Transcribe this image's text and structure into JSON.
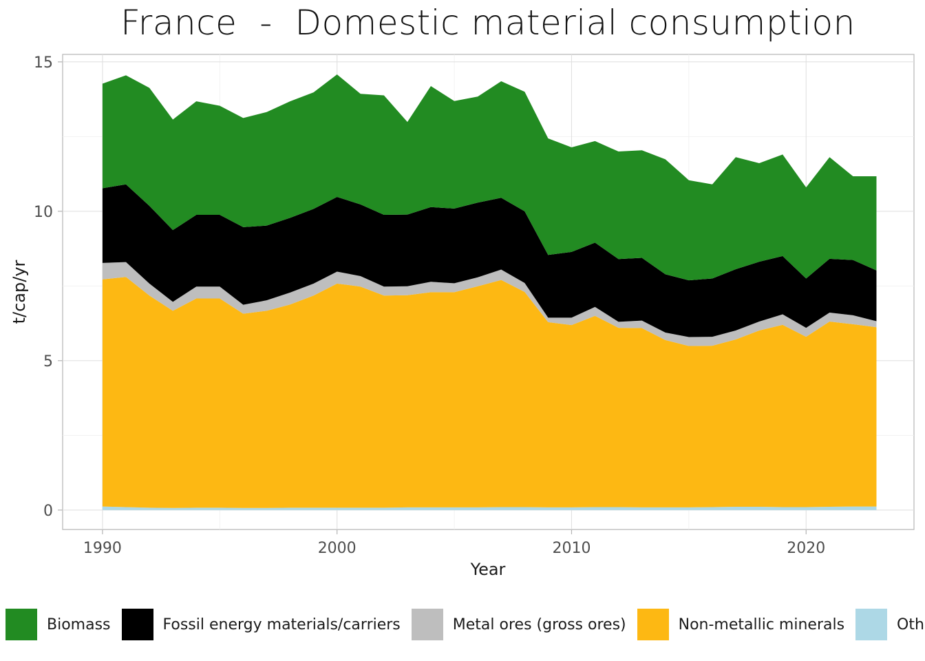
{
  "chart_data": {
    "type": "area",
    "title": "France  -  Domestic material consumption",
    "xlabel": "Year",
    "ylabel": "t/cap/yr",
    "xlim": [
      1988.3,
      2024.6
    ],
    "ylim": [
      -0.65,
      15.25
    ],
    "xticks": [
      1990,
      2000,
      2010,
      2020
    ],
    "yticks": [
      0,
      5,
      10,
      15
    ],
    "grid": true,
    "legend_position": "bottom",
    "stacked": true,
    "x": [
      1990,
      1991,
      1992,
      1993,
      1994,
      1995,
      1996,
      1997,
      1998,
      1999,
      2000,
      2001,
      2002,
      2003,
      2004,
      2005,
      2006,
      2007,
      2008,
      2009,
      2010,
      2011,
      2012,
      2013,
      2014,
      2015,
      2016,
      2017,
      2018,
      2019,
      2020,
      2021,
      2022,
      2023
    ],
    "series": [
      {
        "name": "Other products",
        "color": "#ADD8E6",
        "values": [
          0.12,
          0.1,
          0.08,
          0.07,
          0.08,
          0.08,
          0.07,
          0.07,
          0.08,
          0.08,
          0.08,
          0.08,
          0.08,
          0.09,
          0.09,
          0.09,
          0.09,
          0.1,
          0.1,
          0.09,
          0.09,
          0.1,
          0.1,
          0.09,
          0.09,
          0.09,
          0.1,
          0.11,
          0.11,
          0.1,
          0.1,
          0.11,
          0.12,
          0.12
        ]
      },
      {
        "name": "Non-metallic minerals",
        "color": "#FDB813",
        "values": [
          7.6,
          7.7,
          7.1,
          6.6,
          7.0,
          7.0,
          6.5,
          6.6,
          6.8,
          7.1,
          7.5,
          7.4,
          7.1,
          7.1,
          7.2,
          7.2,
          7.4,
          7.6,
          7.2,
          6.2,
          6.1,
          6.4,
          6.0,
          6.0,
          5.6,
          5.4,
          5.4,
          5.6,
          5.9,
          6.1,
          5.7,
          6.2,
          6.1,
          6.0
        ]
      },
      {
        "name": "Metal ores (gross ores)",
        "color": "#BEBEBE",
        "values": [
          0.55,
          0.5,
          0.4,
          0.3,
          0.4,
          0.4,
          0.3,
          0.35,
          0.4,
          0.4,
          0.4,
          0.35,
          0.3,
          0.3,
          0.35,
          0.3,
          0.3,
          0.35,
          0.3,
          0.15,
          0.25,
          0.3,
          0.2,
          0.25,
          0.25,
          0.3,
          0.3,
          0.3,
          0.3,
          0.35,
          0.3,
          0.3,
          0.3,
          0.2
        ]
      },
      {
        "name": "Fossil energy materials/carriers",
        "color": "#000000",
        "values": [
          2.5,
          2.6,
          2.6,
          2.4,
          2.4,
          2.4,
          2.6,
          2.5,
          2.5,
          2.5,
          2.5,
          2.4,
          2.4,
          2.4,
          2.5,
          2.5,
          2.5,
          2.4,
          2.4,
          2.1,
          2.2,
          2.15,
          2.1,
          2.1,
          1.95,
          1.9,
          1.95,
          2.05,
          2.0,
          1.95,
          1.65,
          1.8,
          1.85,
          1.7
        ]
      },
      {
        "name": "Biomass",
        "color": "#228B22",
        "values": [
          3.5,
          3.65,
          3.95,
          3.7,
          3.8,
          3.65,
          3.65,
          3.8,
          3.9,
          3.9,
          4.1,
          3.7,
          4.0,
          3.1,
          4.05,
          3.6,
          3.55,
          3.9,
          4.0,
          3.9,
          3.5,
          3.4,
          3.6,
          3.6,
          3.85,
          3.35,
          3.15,
          3.75,
          3.3,
          3.4,
          3.05,
          3.4,
          2.8,
          3.15
        ]
      }
    ],
    "legend": [
      "Biomass",
      "Fossil energy materials/carriers",
      "Metal ores (gross ores)",
      "Non-metallic minerals",
      "Other products"
    ]
  }
}
